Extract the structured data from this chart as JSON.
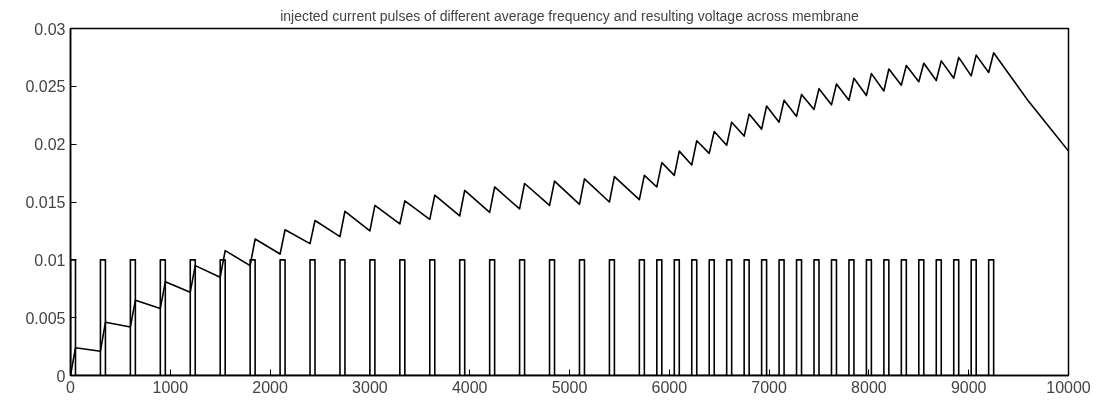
{
  "chart_data": {
    "type": "line",
    "title": "injected current pulses of different average frequency and resulting voltage across membrane",
    "xlim": [
      0,
      10000
    ],
    "ylim": [
      0,
      0.03
    ],
    "xticks": [
      0,
      1000,
      2000,
      3000,
      4000,
      5000,
      6000,
      7000,
      8000,
      9000,
      10000
    ],
    "yticks": [
      0,
      0.005,
      0.01,
      0.015,
      0.02,
      0.025,
      0.03
    ],
    "grid": false,
    "marker": "none",
    "line_style": "solid",
    "series": [
      {
        "color": "#000000",
        "x": [
          0,
          0,
          50,
          50,
          300,
          300,
          350,
          350,
          600,
          600,
          650,
          650,
          900,
          900,
          950,
          950,
          1200,
          1200,
          1250,
          1250,
          1500,
          1500,
          1550,
          1550,
          1800,
          1800,
          1850,
          1850,
          2100,
          2100,
          2150,
          2150,
          2400,
          2400,
          2450,
          2450,
          2700,
          2700,
          2750,
          2750,
          3000,
          3000,
          3050,
          3050,
          3300,
          3300,
          3350,
          3350,
          3600,
          3600,
          3650,
          3650,
          3900,
          3900,
          3950,
          3950,
          4200,
          4200,
          4250,
          4250,
          4500,
          4500,
          4550,
          4550,
          4800,
          4800,
          4850,
          4850,
          5100,
          5100,
          5150,
          5150,
          5400,
          5400,
          5450,
          5450,
          5700,
          5700,
          5750,
          5750,
          5875,
          5875,
          5925,
          5925,
          6050,
          6050,
          6100,
          6100,
          6225,
          6225,
          6275,
          6275,
          6400,
          6400,
          6450,
          6450,
          6575,
          6575,
          6625,
          6625,
          6750,
          6750,
          6800,
          6800,
          6925,
          6925,
          6975,
          6975,
          7100,
          7100,
          7150,
          7150,
          7275,
          7275,
          7325,
          7325,
          7450,
          7450,
          7500,
          7500,
          7625,
          7625,
          7675,
          7675,
          7800,
          7800,
          7850,
          7850,
          7975,
          7975,
          8025,
          8025,
          8150,
          8150,
          8200,
          8200,
          8325,
          8325,
          8375,
          8375,
          8500,
          8500,
          8550,
          8550,
          8675,
          8675,
          8725,
          8725,
          8850,
          8850,
          8900,
          8900,
          9025,
          9025,
          9075,
          9075,
          9200,
          9200,
          9250,
          9250
        ],
        "values": [
          0,
          0.01,
          0.01,
          0,
          0,
          0.01,
          0.01,
          0,
          0,
          0.01,
          0.01,
          0,
          0,
          0.01,
          0.01,
          0,
          0,
          0.01,
          0.01,
          0,
          0,
          0.01,
          0.01,
          0,
          0,
          0.01,
          0.01,
          0,
          0,
          0.01,
          0.01,
          0,
          0,
          0.01,
          0.01,
          0,
          0,
          0.01,
          0.01,
          0,
          0,
          0.01,
          0.01,
          0,
          0,
          0.01,
          0.01,
          0,
          0,
          0.01,
          0.01,
          0,
          0,
          0.01,
          0.01,
          0,
          0,
          0.01,
          0.01,
          0,
          0,
          0.01,
          0.01,
          0,
          0,
          0.01,
          0.01,
          0,
          0,
          0.01,
          0.01,
          0,
          0,
          0.01,
          0.01,
          0,
          0,
          0.01,
          0.01,
          0,
          0,
          0.01,
          0.01,
          0,
          0,
          0.01,
          0.01,
          0,
          0,
          0.01,
          0.01,
          0,
          0,
          0.01,
          0.01,
          0,
          0,
          0.01,
          0.01,
          0,
          0,
          0.01,
          0.01,
          0,
          0,
          0.01,
          0.01,
          0,
          0,
          0.01,
          0.01,
          0,
          0,
          0.01,
          0.01,
          0,
          0,
          0.01,
          0.01,
          0,
          0,
          0.01,
          0.01,
          0,
          0,
          0.01,
          0.01,
          0,
          0,
          0.01,
          0.01,
          0,
          0,
          0.01,
          0.01,
          0,
          0,
          0.01,
          0.01,
          0,
          0,
          0.01,
          0.01,
          0,
          0,
          0.01,
          0.01,
          0,
          0,
          0.01,
          0.01,
          0,
          0,
          0.01,
          0.01,
          0,
          0,
          0.01,
          0.01,
          0
        ]
      },
      {
        "color": "#000000",
        "x": [
          0,
          50,
          300,
          350,
          600,
          650,
          900,
          950,
          1200,
          1250,
          1500,
          1550,
          1800,
          1850,
          2100,
          2150,
          2400,
          2450,
          2700,
          2750,
          3000,
          3050,
          3300,
          3350,
          3600,
          3650,
          3900,
          3950,
          4200,
          4250,
          4500,
          4550,
          4800,
          4850,
          5100,
          5150,
          5400,
          5450,
          5700,
          5750,
          5875,
          5925,
          6050,
          6100,
          6225,
          6275,
          6400,
          6450,
          6575,
          6625,
          6750,
          6800,
          6925,
          6975,
          7100,
          7150,
          7275,
          7325,
          7450,
          7500,
          7625,
          7675,
          7800,
          7850,
          7975,
          8025,
          8150,
          8200,
          8325,
          8375,
          8500,
          8550,
          8675,
          8725,
          8850,
          8900,
          9025,
          9075,
          9200,
          9250,
          9600,
          10000
        ],
        "values": [
          0,
          0.0024,
          0.0021,
          0.0046,
          0.0042,
          0.0065,
          0.0058,
          0.0081,
          0.0072,
          0.0095,
          0.0085,
          0.0108,
          0.0095,
          0.0118,
          0.0105,
          0.0126,
          0.0114,
          0.0134,
          0.012,
          0.0142,
          0.0125,
          0.0147,
          0.0131,
          0.0151,
          0.0135,
          0.0156,
          0.0138,
          0.016,
          0.0141,
          0.0163,
          0.0144,
          0.0166,
          0.0147,
          0.0168,
          0.0148,
          0.017,
          0.015,
          0.0172,
          0.0152,
          0.0173,
          0.0163,
          0.0184,
          0.0173,
          0.0194,
          0.0182,
          0.0203,
          0.0192,
          0.0211,
          0.0199,
          0.0219,
          0.0207,
          0.0226,
          0.0213,
          0.0233,
          0.0219,
          0.0238,
          0.0224,
          0.0243,
          0.023,
          0.0248,
          0.0234,
          0.0252,
          0.0238,
          0.0257,
          0.0242,
          0.0261,
          0.0246,
          0.0265,
          0.0251,
          0.0268,
          0.0254,
          0.027,
          0.0255,
          0.0272,
          0.0257,
          0.0275,
          0.0259,
          0.0277,
          0.0262,
          0.0279,
          0.0237,
          0.0194
        ]
      }
    ]
  }
}
